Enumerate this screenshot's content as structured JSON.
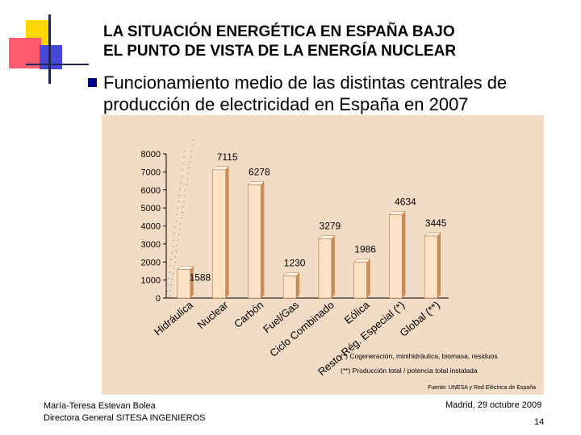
{
  "slide": {
    "title_line1": "LA SITUACIÓN ENERGÉTICA EN ESPAÑA BAJO",
    "title_line2": "EL PUNTO DE VISTA DE LA ENERGÍA NUCLEAR",
    "bullet_line1": "Funcionamiento medio de las distintas centrales de",
    "bullet_line2": "producción de electricidad en España en 2007",
    "footer_author": "María-Teresa Estevan Bolea",
    "footer_role": "Directora General SITESA INGENIEROS",
    "footer_date": "Madrid, 29 octubre 2009",
    "page_number": "14"
  },
  "colors": {
    "panel_bg": "#f3dcc6",
    "bar_fill": "#fde2c6",
    "bar_top": "#fff2e4",
    "bar_side": "#c98d55",
    "deco_yellow": "#ffd700",
    "deco_red": "#ff5a6e",
    "deco_blue": "#4848d8",
    "bullet_blue": "#000090"
  },
  "chart_data": {
    "type": "bar",
    "categories": [
      "Hidráulica",
      "Nuclear",
      "Carbón",
      "Fuel/Gas",
      "Ciclo Combinado",
      "Eólica",
      "Resto Rég. Especial (*)",
      "Global (**)"
    ],
    "values": [
      1588,
      7115,
      6278,
      1230,
      3279,
      1986,
      4634,
      3445
    ],
    "data_labels": [
      "1588",
      "7115",
      "6278",
      "1230",
      "3279",
      "1986",
      "4634",
      "3445"
    ],
    "yticks": [
      "0",
      "1000",
      "2000",
      "3000",
      "4000",
      "5000",
      "6000",
      "7000",
      "8000"
    ],
    "ylim": [
      0,
      8000
    ],
    "notes": [
      "(*) Cogeneración, minihidráulica, biomasa, residuos",
      "(**) Producción total / potencia total instalada"
    ],
    "source": "Fuente: UNESA y Red Eléctrica de España",
    "title": "",
    "xlabel": "",
    "ylabel": ""
  }
}
